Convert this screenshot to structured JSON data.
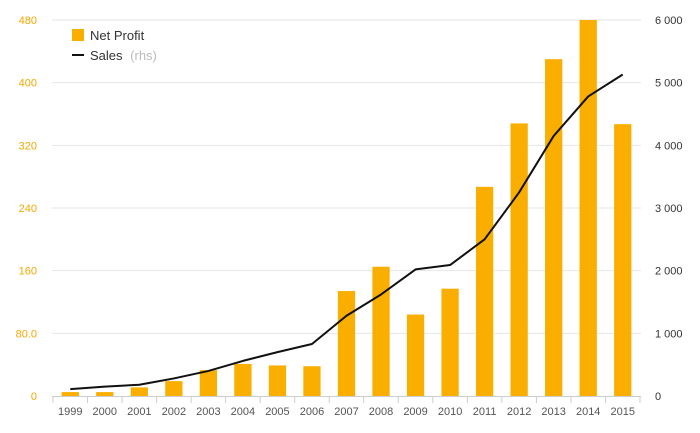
{
  "chart_data": {
    "type": "bar+line",
    "categories": [
      "1999",
      "2000",
      "2001",
      "2002",
      "2003",
      "2004",
      "2005",
      "2006",
      "2007",
      "2008",
      "2009",
      "2010",
      "2011",
      "2012",
      "2013",
      "2014",
      "2015"
    ],
    "series": [
      {
        "name": "Net Profit",
        "kind": "bar",
        "axis": "left",
        "color": "#f9ae00",
        "values": [
          5,
          5,
          11,
          19,
          33,
          41,
          39,
          38,
          134,
          165,
          104,
          137,
          267,
          348,
          430,
          480,
          347
        ]
      },
      {
        "name": "Sales",
        "kind": "line",
        "axis": "right",
        "color": "#111111",
        "values": [
          110,
          150,
          180,
          280,
          400,
          560,
          700,
          830,
          1280,
          1620,
          2020,
          2090,
          2500,
          3250,
          4150,
          4780,
          5130
        ]
      }
    ],
    "left_axis": {
      "ylim": [
        0,
        480
      ],
      "ticks": [
        0,
        80,
        160,
        240,
        320,
        400,
        480
      ],
      "tick_labels": [
        "0",
        "80.0",
        "160",
        "240",
        "320",
        "400",
        "480"
      ],
      "color": "#f5a800"
    },
    "right_axis": {
      "ylim": [
        0,
        6000
      ],
      "ticks": [
        0,
        1000,
        2000,
        3000,
        4000,
        5000,
        6000
      ],
      "tick_labels": [
        "0",
        "1 000",
        "2 000",
        "3 000",
        "4 000",
        "5 000",
        "6 000"
      ],
      "color": "#333333"
    },
    "legend": {
      "position": "top-left",
      "items": [
        {
          "label": "Net Profit",
          "note": ""
        },
        {
          "label": "Sales",
          "note": "(rhs)"
        }
      ]
    },
    "grid": true
  }
}
